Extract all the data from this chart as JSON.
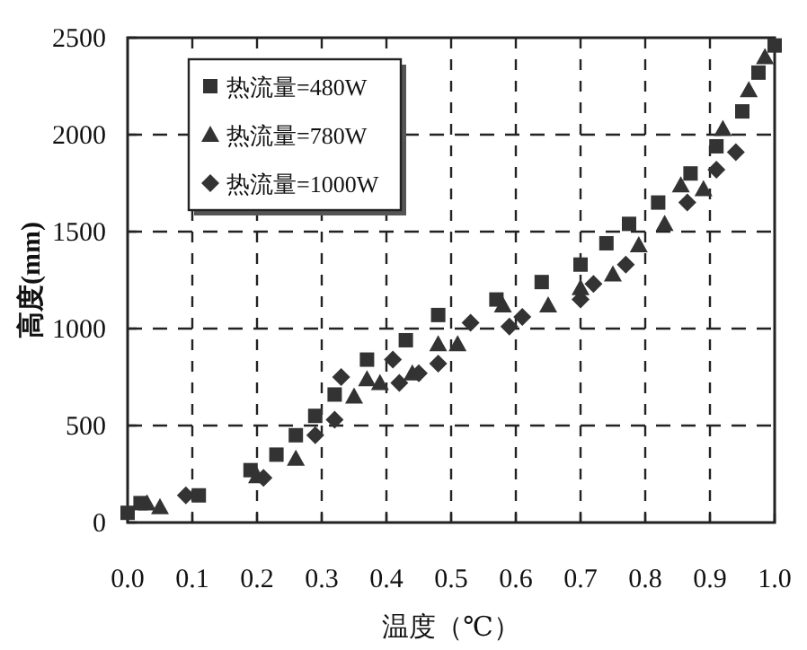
{
  "chart_data": {
    "type": "scatter",
    "xlabel": "温度（℃）",
    "ylabel": "高度(mm)",
    "xlim": [
      0,
      1.0
    ],
    "ylim": [
      0,
      2500
    ],
    "xticks": [
      {
        "value": 0,
        "label": "0.0"
      },
      0.1,
      0.2,
      0.3,
      0.4,
      0.5,
      0.6,
      0.7,
      0.8,
      0.9,
      {
        "value": 1,
        "label": "1.0"
      }
    ],
    "yticks": [
      0,
      500,
      1000,
      1500,
      2000,
      2500
    ],
    "grid": true,
    "legend": "top left",
    "series": [
      {
        "name": "热流量=480W",
        "color": "#333333",
        "marker": "square",
        "x": [
          0,
          0.02,
          0.11,
          0.19,
          0.23,
          0.26,
          0.29,
          0.32,
          0.37,
          0.43,
          0.48,
          0.57,
          0.64,
          0.7,
          0.74,
          0.775,
          0.82,
          0.87,
          0.91,
          0.95,
          0.975,
          1.0
        ],
        "values": [
          50,
          100,
          140,
          270,
          350,
          450,
          550,
          660,
          840,
          940,
          1070,
          1150,
          1240,
          1330,
          1440,
          1540,
          1650,
          1800,
          1940,
          2120,
          2320,
          2460
        ]
      },
      {
        "name": "热流量=780W",
        "color": "#333333",
        "marker": "triangle",
        "x": [
          0.03,
          0.05,
          0.2,
          0.26,
          0.35,
          0.37,
          0.39,
          0.44,
          0.48,
          0.51,
          0.58,
          0.65,
          0.7,
          0.75,
          0.79,
          0.83,
          0.855,
          0.89,
          0.92,
          0.96,
          0.985
        ],
        "values": [
          100,
          80,
          240,
          330,
          650,
          740,
          720,
          770,
          920,
          920,
          1120,
          1120,
          1210,
          1280,
          1430,
          1540,
          1740,
          1720,
          2030,
          2230,
          2400
        ]
      },
      {
        "name": "热流量=1000W",
        "color": "#333333",
        "marker": "diamond",
        "x": [
          0.09,
          0.21,
          0.29,
          0.32,
          0.33,
          0.41,
          0.42,
          0.45,
          0.48,
          0.53,
          0.59,
          0.61,
          0.7,
          0.72,
          0.77,
          0.865,
          0.91,
          0.94
        ],
        "values": [
          140,
          230,
          450,
          530,
          750,
          840,
          720,
          770,
          820,
          1030,
          1010,
          1060,
          1150,
          1230,
          1330,
          1650,
          1820,
          1910
        ]
      }
    ]
  }
}
